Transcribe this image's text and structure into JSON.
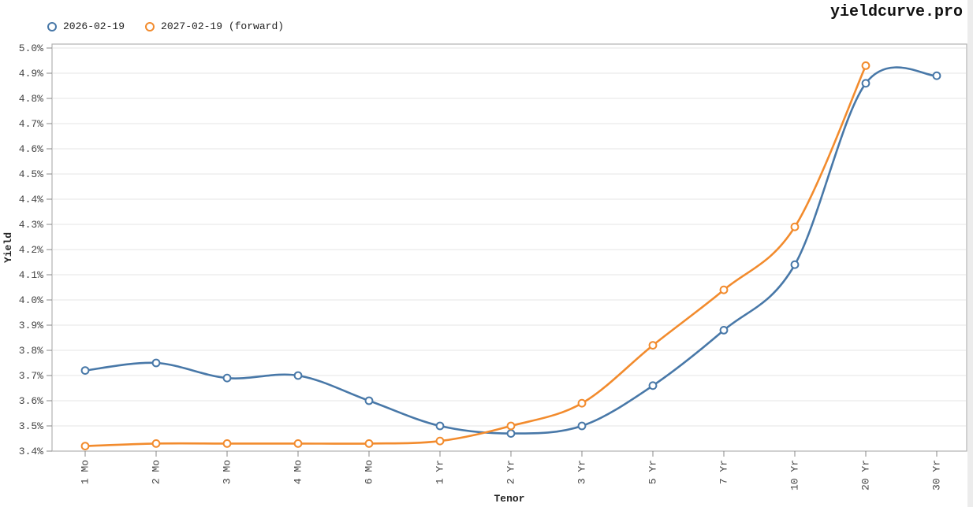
{
  "brand": {
    "title": "yieldcurve.pro"
  },
  "legend": {
    "items": [
      {
        "label": "2026-02-19",
        "color": "#4878A8"
      },
      {
        "label": "2027-02-19 (forward)",
        "color": "#F28B2D"
      }
    ]
  },
  "chart_data": {
    "type": "line",
    "title": "",
    "xlabel": "Tenor",
    "ylabel": "Yield",
    "categories": [
      "1 Mo",
      "2 Mo",
      "3 Mo",
      "4 Mo",
      "6 Mo",
      "1 Yr",
      "2 Yr",
      "3 Yr",
      "5 Yr",
      "7 Yr",
      "10 Yr",
      "20 Yr",
      "30 Yr"
    ],
    "ylim": [
      3.4,
      5.0
    ],
    "y_tick_step": 0.1,
    "y_tick_labels": [
      "3.4%",
      "3.5%",
      "3.6%",
      "3.7%",
      "3.8%",
      "3.9%",
      "4.0%",
      "4.1%",
      "4.2%",
      "4.3%",
      "4.4%",
      "4.5%",
      "4.6%",
      "4.7%",
      "4.8%",
      "4.9%",
      "5.0%"
    ],
    "grid": "horizontal",
    "legend_position": "top-left",
    "marker": "open-circle",
    "curve": "smooth-spline",
    "series": [
      {
        "name": "2026-02-19",
        "color": "#4878A8",
        "values": [
          3.72,
          3.75,
          3.69,
          3.7,
          3.6,
          3.5,
          3.47,
          3.5,
          3.66,
          3.88,
          4.14,
          4.86,
          4.89
        ]
      },
      {
        "name": "2027-02-19 (forward)",
        "color": "#F28B2D",
        "values": [
          3.42,
          3.43,
          3.43,
          3.43,
          3.43,
          3.44,
          3.5,
          3.59,
          3.82,
          4.04,
          4.29,
          4.93,
          null
        ]
      }
    ]
  },
  "colors": {
    "grid": "#e4e4e4",
    "spine": "#b2b2b2",
    "tick": "#888888",
    "tick_label": "#444444",
    "right_strip": "#ececec"
  }
}
